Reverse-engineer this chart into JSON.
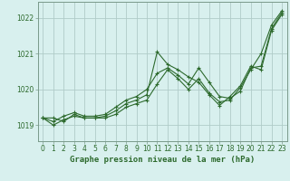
{
  "title": "Graphe pression niveau de la mer (hPa)",
  "background_color": "#d8f0ee",
  "grid_color": "#b0ccc8",
  "line_color": "#2d6a2d",
  "spine_color": "#7a9a8a",
  "xlim": [
    -0.5,
    23.5
  ],
  "ylim": [
    1018.55,
    1022.45
  ],
  "yticks": [
    1019,
    1020,
    1021,
    1022
  ],
  "xticks": [
    0,
    1,
    2,
    3,
    4,
    5,
    6,
    7,
    8,
    9,
    10,
    11,
    12,
    13,
    14,
    15,
    16,
    17,
    18,
    19,
    20,
    21,
    22,
    23
  ],
  "series": [
    [
      1019.2,
      1019.2,
      1019.1,
      1019.3,
      1019.2,
      1019.2,
      1019.2,
      1019.3,
      1019.5,
      1019.6,
      1019.7,
      1020.15,
      1020.55,
      1020.3,
      1020.0,
      1020.3,
      1019.9,
      1019.65,
      1019.7,
      1020.05,
      1020.55,
      1021.0,
      1021.8,
      1022.2
    ],
    [
      1019.2,
      1019.0,
      1019.15,
      1019.25,
      1019.2,
      1019.2,
      1019.25,
      1019.4,
      1019.6,
      1019.7,
      1019.85,
      1021.05,
      1020.7,
      1020.55,
      1020.35,
      1020.2,
      1019.85,
      1019.55,
      1019.8,
      1020.1,
      1020.65,
      1020.55,
      1021.65,
      1022.1
    ],
    [
      1019.2,
      1019.1,
      1019.25,
      1019.35,
      1019.25,
      1019.25,
      1019.3,
      1019.5,
      1019.7,
      1019.8,
      1020.0,
      1020.45,
      1020.6,
      1020.4,
      1020.15,
      1020.6,
      1020.2,
      1019.8,
      1019.75,
      1019.95,
      1020.6,
      1020.65,
      1021.7,
      1022.15
    ]
  ],
  "tick_fontsize": 5.5,
  "label_fontsize": 6.5
}
